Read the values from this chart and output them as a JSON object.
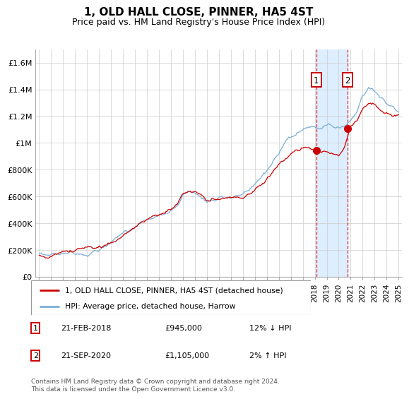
{
  "title": "1, OLD HALL CLOSE, PINNER, HA5 4ST",
  "subtitle": "Price paid vs. HM Land Registry's House Price Index (HPI)",
  "legend_line1": "1, OLD HALL CLOSE, PINNER, HA5 4ST (detached house)",
  "legend_line2": "HPI: Average price, detached house, Harrow",
  "sale1_date": "21-FEB-2018",
  "sale1_price": "£945,000",
  "sale1_hpi": "12% ↓ HPI",
  "sale1_year": 2018.12,
  "sale1_value": 945000,
  "sale2_date": "21-SEP-2020",
  "sale2_price": "£1,105,000",
  "sale2_hpi": "2% ↑ HPI",
  "sale2_year": 2020.72,
  "sale2_value": 1105000,
  "ylabel_items": [
    "£0",
    "£200K",
    "£400K",
    "£600K",
    "£800K",
    "£1M",
    "£1.2M",
    "£1.4M",
    "£1.6M"
  ],
  "yticks": [
    0,
    200000,
    400000,
    600000,
    800000,
    1000000,
    1200000,
    1400000,
    1600000
  ],
  "ylim_top": 1700000,
  "xlim_start": 1994.7,
  "xlim_end": 2025.3,
  "red_color": "#cc0000",
  "blue_color": "#7aaed6",
  "shade_color": "#ddeeff",
  "grid_color": "#cccccc",
  "footer": "Contains HM Land Registry data © Crown copyright and database right 2024.\nThis data is licensed under the Open Government Licence v3.0.",
  "hpi_control": [
    [
      1995,
      175000
    ],
    [
      1995.5,
      172000
    ],
    [
      1996,
      178000
    ],
    [
      1996.5,
      182000
    ],
    [
      1997,
      192000
    ],
    [
      1997.5,
      200000
    ],
    [
      1998,
      208000
    ],
    [
      1998.5,
      215000
    ],
    [
      1999,
      225000
    ],
    [
      1999.5,
      240000
    ],
    [
      2000,
      260000
    ],
    [
      2000.5,
      280000
    ],
    [
      2001,
      300000
    ],
    [
      2001.5,
      330000
    ],
    [
      2002,
      365000
    ],
    [
      2002.5,
      395000
    ],
    [
      2003,
      430000
    ],
    [
      2003.5,
      460000
    ],
    [
      2004,
      480000
    ],
    [
      2004.5,
      490000
    ],
    [
      2005,
      510000
    ],
    [
      2005.5,
      525000
    ],
    [
      2006,
      545000
    ],
    [
      2006.5,
      580000
    ],
    [
      2007,
      670000
    ],
    [
      2007.5,
      690000
    ],
    [
      2008,
      680000
    ],
    [
      2008.5,
      650000
    ],
    [
      2009,
      610000
    ],
    [
      2009.5,
      630000
    ],
    [
      2010,
      650000
    ],
    [
      2010.5,
      660000
    ],
    [
      2011,
      670000
    ],
    [
      2011.5,
      675000
    ],
    [
      2012,
      685000
    ],
    [
      2012.5,
      700000
    ],
    [
      2013,
      730000
    ],
    [
      2013.5,
      780000
    ],
    [
      2014,
      830000
    ],
    [
      2014.5,
      880000
    ],
    [
      2015,
      940000
    ],
    [
      2015.5,
      990000
    ],
    [
      2016,
      1020000
    ],
    [
      2016.5,
      1050000
    ],
    [
      2017,
      1060000
    ],
    [
      2017.5,
      1080000
    ],
    [
      2018,
      1070000
    ],
    [
      2018.5,
      1060000
    ],
    [
      2019,
      1070000
    ],
    [
      2019.5,
      1065000
    ],
    [
      2020,
      1060000
    ],
    [
      2020.5,
      1080000
    ],
    [
      2021,
      1120000
    ],
    [
      2021.5,
      1200000
    ],
    [
      2022,
      1320000
    ],
    [
      2022.5,
      1380000
    ],
    [
      2023,
      1360000
    ],
    [
      2023.5,
      1320000
    ],
    [
      2024,
      1280000
    ],
    [
      2024.5,
      1260000
    ],
    [
      2025,
      1230000
    ]
  ],
  "red_control": [
    [
      1995,
      160000
    ],
    [
      1995.5,
      158000
    ],
    [
      1996,
      162000
    ],
    [
      1996.5,
      168000
    ],
    [
      1997,
      175000
    ],
    [
      1997.5,
      182000
    ],
    [
      1998,
      192000
    ],
    [
      1998.5,
      200000
    ],
    [
      1999,
      210000
    ],
    [
      1999.5,
      225000
    ],
    [
      2000,
      245000
    ],
    [
      2000.5,
      265000
    ],
    [
      2001,
      285000
    ],
    [
      2001.5,
      310000
    ],
    [
      2002,
      340000
    ],
    [
      2002.5,
      370000
    ],
    [
      2003,
      400000
    ],
    [
      2003.5,
      430000
    ],
    [
      2004,
      450000
    ],
    [
      2004.5,
      460000
    ],
    [
      2005,
      475000
    ],
    [
      2005.5,
      490000
    ],
    [
      2006,
      510000
    ],
    [
      2006.5,
      540000
    ],
    [
      2007,
      620000
    ],
    [
      2007.5,
      640000
    ],
    [
      2008,
      630000
    ],
    [
      2008.5,
      600000
    ],
    [
      2009,
      560000
    ],
    [
      2009.5,
      580000
    ],
    [
      2010,
      590000
    ],
    [
      2010.5,
      600000
    ],
    [
      2011,
      610000
    ],
    [
      2011.5,
      615000
    ],
    [
      2012,
      625000
    ],
    [
      2012.5,
      640000
    ],
    [
      2013,
      670000
    ],
    [
      2013.5,
      710000
    ],
    [
      2014,
      755000
    ],
    [
      2014.5,
      800000
    ],
    [
      2015,
      855000
    ],
    [
      2015.5,
      900000
    ],
    [
      2016,
      930000
    ],
    [
      2016.5,
      960000
    ],
    [
      2017,
      970000
    ],
    [
      2017.5,
      980000
    ],
    [
      2018,
      945000
    ],
    [
      2018.5,
      930000
    ],
    [
      2019,
      920000
    ],
    [
      2019.5,
      910000
    ],
    [
      2020,
      905000
    ],
    [
      2020.5,
      960000
    ],
    [
      2021,
      1105000
    ],
    [
      2021.5,
      1150000
    ],
    [
      2022,
      1250000
    ],
    [
      2022.5,
      1300000
    ],
    [
      2023,
      1280000
    ],
    [
      2023.5,
      1240000
    ],
    [
      2024,
      1220000
    ],
    [
      2024.5,
      1200000
    ],
    [
      2025,
      1210000
    ]
  ]
}
